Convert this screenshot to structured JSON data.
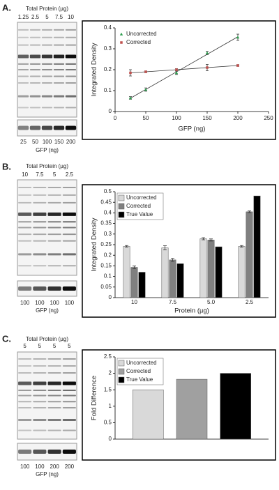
{
  "panels": [
    {
      "label": "A.",
      "blot_title": "Total Protein (µg)",
      "lanes_top": [
        "1.25",
        "2.5",
        "5",
        "7.5",
        "10"
      ],
      "lanes_bottom": [
        "25",
        "50",
        "100",
        "150",
        "200"
      ],
      "blot_xlabel": "GFP (ng)"
    },
    {
      "label": "B.",
      "blot_title": "Total Protein (µg)",
      "lanes_top": [
        "10",
        "7.5",
        "5",
        "2.5"
      ],
      "lanes_bottom": [
        "100",
        "100",
        "100",
        "100"
      ],
      "blot_xlabel": "GFP (ng)"
    },
    {
      "label": "C.",
      "blot_title": "Total Protein (µg)",
      "lanes_top": [
        "5",
        "5",
        "5",
        "5"
      ],
      "lanes_bottom": [
        "100",
        "100",
        "200",
        "200"
      ],
      "blot_xlabel": "GFP (ng)"
    }
  ],
  "chart_data": [
    {
      "type": "scatter",
      "trendline": true,
      "xlabel": "GFP (ng)",
      "ylabel": "Integrated Density",
      "xlim": [
        0,
        250
      ],
      "xticks": [
        0,
        50,
        100,
        150,
        200,
        250
      ],
      "ylim": [
        0,
        0.4
      ],
      "yticks": [
        0,
        0.1,
        0.2,
        0.3,
        0.4
      ],
      "legend": "upper left",
      "series": [
        {
          "name": "Uncorrected",
          "color": "#2e9e4f",
          "marker": "triangle",
          "x": [
            25,
            50,
            100,
            150,
            200
          ],
          "values": [
            0.065,
            0.105,
            0.185,
            0.28,
            0.355
          ],
          "errors": [
            0.006,
            0.008,
            0.008,
            0.008,
            0.015
          ]
        },
        {
          "name": "Corrected",
          "color": "#c0504d",
          "marker": "square",
          "x": [
            25,
            50,
            100,
            150,
            200
          ],
          "values": [
            0.185,
            0.19,
            0.2,
            0.21,
            0.22
          ],
          "errors": [
            0.015,
            0.004,
            0.005,
            0.015,
            0.004
          ]
        }
      ]
    },
    {
      "type": "bar",
      "xlabel": "Protein (µg)",
      "ylabel": "Integrated Density",
      "categories": [
        "10",
        "7.5",
        "5.0",
        "2.5"
      ],
      "ylim": [
        0,
        0.5
      ],
      "yticks": [
        0,
        0.05,
        0.1,
        0.15,
        0.2,
        0.25,
        0.3,
        0.35,
        0.4,
        0.45,
        0.5
      ],
      "legend": "upper left",
      "series": [
        {
          "name": "Uncorrected",
          "color": "#d9d9d9",
          "values": [
            0.242,
            0.235,
            0.278,
            0.242
          ],
          "errors": [
            0.004,
            0.01,
            0.005,
            0.004
          ]
        },
        {
          "name": "Corrected",
          "color": "#808080",
          "values": [
            0.143,
            0.178,
            0.272,
            0.405
          ],
          "errors": [
            0.006,
            0.007,
            0.005,
            0.004
          ]
        },
        {
          "name": "True Value",
          "color": "#000000",
          "values": [
            0.12,
            0.16,
            0.24,
            0.48
          ]
        }
      ]
    },
    {
      "type": "bar",
      "ylabel": "Fold Difference",
      "categories": [
        null
      ],
      "ylim": [
        0,
        2.5
      ],
      "yticks": [
        0,
        0.5,
        1,
        1.5,
        2,
        2.5
      ],
      "legend": "upper left",
      "series": [
        {
          "name": "Uncorrected",
          "color": "#d9d9d9",
          "values": [
            1.5
          ]
        },
        {
          "name": "Corrected",
          "color": "#a0a0a0",
          "values": [
            1.82
          ]
        },
        {
          "name": "True Value",
          "color": "#000000",
          "values": [
            2.0
          ]
        }
      ]
    }
  ]
}
